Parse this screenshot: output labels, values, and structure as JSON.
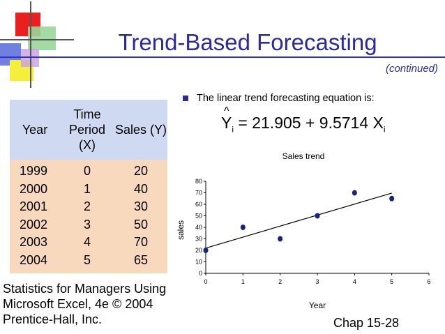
{
  "slide": {
    "title": "Trend-Based Forecasting",
    "subtitle": "(continued)",
    "bullet": "The linear trend forecasting equation is:",
    "equation": {
      "lhs": "Y",
      "lhs_sub": "i",
      "rhs": "= 21.905 + 9.5714 X",
      "rhs_sub": "i"
    },
    "footer_left": [
      "Statistics for Managers Using",
      "Microsoft Excel, 4e © 2004",
      "Prentice-Hall, Inc."
    ],
    "footer_right": "Chap 15-28"
  },
  "table": {
    "headers": [
      "Year",
      "Time Period (X)",
      "Sales (Y)"
    ],
    "rows": [
      [
        "1999",
        "0",
        "20"
      ],
      [
        "2000",
        "1",
        "40"
      ],
      [
        "2001",
        "2",
        "30"
      ],
      [
        "2002",
        "3",
        "50"
      ],
      [
        "2003",
        "4",
        "70"
      ],
      [
        "2004",
        "5",
        "65"
      ]
    ]
  },
  "chart_data": {
    "type": "scatter",
    "title": "Sales trend",
    "xlabel": "Year",
    "ylabel": "sales",
    "xlim": [
      0,
      6
    ],
    "ylim": [
      0,
      80
    ],
    "xticks": [
      0,
      1,
      2,
      3,
      4,
      5,
      6
    ],
    "yticks": [
      0,
      10,
      20,
      30,
      40,
      50,
      60,
      70,
      80
    ],
    "points": [
      [
        0,
        20
      ],
      [
        1,
        40
      ],
      [
        2,
        30
      ],
      [
        3,
        50
      ],
      [
        4,
        70
      ],
      [
        5,
        65
      ]
    ],
    "trendline": {
      "intercept": 21.905,
      "slope": 9.5714,
      "x_range": [
        0,
        5
      ]
    },
    "grid": false,
    "legend": "none",
    "colors": {
      "point": "#1a237e",
      "line": "#000000"
    }
  },
  "colors": {
    "title": "#2a2a9c",
    "table_header": "#cfd9f1",
    "table_body": "#f9d9bd"
  }
}
